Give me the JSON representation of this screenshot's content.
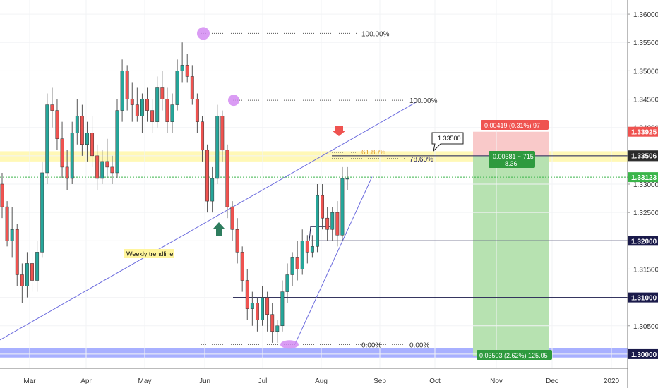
{
  "chart_data": {
    "type": "candlestick",
    "x_ticks": [
      "Mar",
      "Apr",
      "May",
      "Jun",
      "Jul",
      "Aug",
      "Sep",
      "Oct",
      "Nov",
      "Dec",
      "2020"
    ],
    "y_ticks": [
      "1.36000",
      "1.35500",
      "1.35000",
      "1.34500",
      "1.34000",
      "1.33500",
      "1.33000",
      "1.32500",
      "1.32000",
      "1.31500",
      "1.31000",
      "1.30500",
      "1.30000"
    ],
    "ylim": [
      1.2975,
      1.3625
    ],
    "price_labels": [
      {
        "value": 1.33925,
        "text": "1.33925",
        "style": "red"
      },
      {
        "value": 1.335,
        "text": "1.33500",
        "style": "white"
      },
      {
        "value": 1.33506,
        "text": "1.33506",
        "style": "dark"
      },
      {
        "value": 1.33123,
        "text": "1.33123",
        "style": "green"
      },
      {
        "value": 1.32,
        "text": "1.32000",
        "style": "navy"
      },
      {
        "value": 1.31,
        "text": "1.31000",
        "style": "navy"
      },
      {
        "value": 1.3,
        "text": "1.30000",
        "style": "navy"
      }
    ],
    "horizontal_levels": [
      1.335,
      1.32,
      1.31
    ],
    "resistance_zone": [
      1.334,
      1.3358
    ],
    "support_zone": [
      1.2994,
      1.301
    ],
    "fib_labels": [
      "100.00%",
      "100.00%",
      "61.80%",
      "78.60%",
      "0.00%",
      "0.00%"
    ],
    "annotations": {
      "trendline_label": "Weekly trendline",
      "callout": "1.33500",
      "risk_label": "0.00419 (0.31%) 97",
      "entry_label": [
        "0.00381 ~ 715",
        "8.36"
      ],
      "reward_label": "0.03503 (2.62%) 125.05"
    },
    "candles": [
      [
        1.33,
        1.332,
        1.324,
        1.326
      ],
      [
        1.326,
        1.327,
        1.319,
        1.32
      ],
      [
        1.32,
        1.326,
        1.317,
        1.322
      ],
      [
        1.322,
        1.323,
        1.312,
        1.314
      ],
      [
        1.314,
        1.316,
        1.309,
        1.312
      ],
      [
        1.312,
        1.318,
        1.31,
        1.316
      ],
      [
        1.316,
        1.318,
        1.311,
        1.313
      ],
      [
        1.313,
        1.32,
        1.311,
        1.318
      ],
      [
        1.318,
        1.334,
        1.317,
        1.332
      ],
      [
        1.332,
        1.346,
        1.33,
        1.344
      ],
      [
        1.344,
        1.347,
        1.34,
        1.343
      ],
      [
        1.343,
        1.345,
        1.336,
        1.338
      ],
      [
        1.338,
        1.341,
        1.331,
        1.333
      ],
      [
        1.333,
        1.336,
        1.329,
        1.331
      ],
      [
        1.331,
        1.341,
        1.33,
        1.339
      ],
      [
        1.339,
        1.345,
        1.337,
        1.342
      ],
      [
        1.342,
        1.344,
        1.335,
        1.337
      ],
      [
        1.337,
        1.341,
        1.334,
        1.339
      ],
      [
        1.339,
        1.342,
        1.333,
        1.335
      ],
      [
        1.335,
        1.337,
        1.329,
        1.331
      ],
      [
        1.331,
        1.336,
        1.33,
        1.334
      ],
      [
        1.334,
        1.338,
        1.331,
        1.333
      ],
      [
        1.333,
        1.335,
        1.33,
        1.332
      ],
      [
        1.332,
        1.345,
        1.331,
        1.343
      ],
      [
        1.343,
        1.352,
        1.341,
        1.35
      ],
      [
        1.35,
        1.351,
        1.343,
        1.345
      ],
      [
        1.345,
        1.348,
        1.341,
        1.344
      ],
      [
        1.344,
        1.347,
        1.341,
        1.342
      ],
      [
        1.342,
        1.346,
        1.339,
        1.345
      ],
      [
        1.345,
        1.347,
        1.341,
        1.343
      ],
      [
        1.343,
        1.345,
        1.339,
        1.341
      ],
      [
        1.341,
        1.349,
        1.34,
        1.347
      ],
      [
        1.347,
        1.35,
        1.343,
        1.345
      ],
      [
        1.345,
        1.347,
        1.339,
        1.341
      ],
      [
        1.341,
        1.346,
        1.339,
        1.344
      ],
      [
        1.344,
        1.352,
        1.343,
        1.35
      ],
      [
        1.35,
        1.355,
        1.348,
        1.351
      ],
      [
        1.351,
        1.353,
        1.348,
        1.349
      ],
      [
        1.349,
        1.351,
        1.344,
        1.345
      ],
      [
        1.345,
        1.346,
        1.339,
        1.341
      ],
      [
        1.341,
        1.342,
        1.334,
        1.336
      ],
      [
        1.336,
        1.337,
        1.325,
        1.327
      ],
      [
        1.327,
        1.333,
        1.325,
        1.331
      ],
      [
        1.331,
        1.344,
        1.33,
        1.342
      ],
      [
        1.342,
        1.343,
        1.334,
        1.336
      ],
      [
        1.336,
        1.337,
        1.324,
        1.326
      ],
      [
        1.326,
        1.327,
        1.32,
        1.322
      ],
      [
        1.322,
        1.324,
        1.316,
        1.318
      ],
      [
        1.318,
        1.319,
        1.311,
        1.313
      ],
      [
        1.313,
        1.315,
        1.306,
        1.308
      ],
      [
        1.308,
        1.311,
        1.305,
        1.309
      ],
      [
        1.309,
        1.31,
        1.304,
        1.306
      ],
      [
        1.306,
        1.312,
        1.305,
        1.31
      ],
      [
        1.31,
        1.311,
        1.304,
        1.307
      ],
      [
        1.307,
        1.309,
        1.302,
        1.304
      ],
      [
        1.304,
        1.306,
        1.302,
        1.305
      ],
      [
        1.305,
        1.313,
        1.304,
        1.311
      ],
      [
        1.311,
        1.316,
        1.309,
        1.314
      ],
      [
        1.314,
        1.318,
        1.312,
        1.317
      ],
      [
        1.317,
        1.32,
        1.313,
        1.315
      ],
      [
        1.315,
        1.322,
        1.314,
        1.32
      ],
      [
        1.32,
        1.321,
        1.316,
        1.318
      ],
      [
        1.318,
        1.321,
        1.317,
        1.319
      ],
      [
        1.319,
        1.33,
        1.318,
        1.328
      ],
      [
        1.328,
        1.33,
        1.322,
        1.324
      ],
      [
        1.324,
        1.326,
        1.32,
        1.322
      ],
      [
        1.322,
        1.326,
        1.32,
        1.325
      ],
      [
        1.325,
        1.327,
        1.319,
        1.321
      ],
      [
        1.321,
        1.333,
        1.32,
        1.331
      ],
      [
        1.331,
        1.333,
        1.329,
        1.331
      ]
    ]
  }
}
